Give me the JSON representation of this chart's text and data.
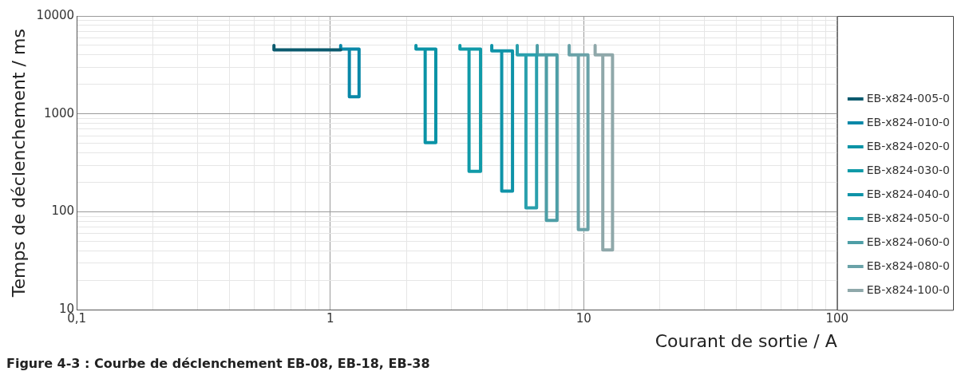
{
  "chart_data": {
    "type": "line",
    "title": "Figure 4-3 : Courbe de déclenchement EB-08, EB-18, EB-38",
    "xlabel": "Courant de sortie / A",
    "ylabel": "Temps de déclenchement / ms",
    "log": "xy",
    "grid": true,
    "legend": "right",
    "marker": "none",
    "line_style": "solid",
    "xlim": [
      0.1,
      100
    ],
    "ylim": [
      10,
      10000
    ],
    "xticks": [
      {
        "value": 0.1,
        "label": "0,1"
      },
      {
        "value": 0.2,
        "label": null
      },
      {
        "value": 0.3,
        "label": null
      },
      {
        "value": 0.4,
        "label": null
      },
      {
        "value": 0.5,
        "label": null
      },
      {
        "value": 0.6,
        "label": null
      },
      {
        "value": 0.7,
        "label": null
      },
      {
        "value": 0.8,
        "label": null
      },
      {
        "value": 0.9,
        "label": null
      },
      1,
      {
        "value": 2,
        "label": null
      },
      {
        "value": 3,
        "label": null
      },
      {
        "value": 4,
        "label": null
      },
      {
        "value": 5,
        "label": null
      },
      {
        "value": 6,
        "label": null
      },
      {
        "value": 7,
        "label": null
      },
      {
        "value": 8,
        "label": null
      },
      {
        "value": 9,
        "label": null
      },
      10,
      {
        "value": 20,
        "label": null
      },
      {
        "value": 30,
        "label": null
      },
      {
        "value": 40,
        "label": null
      },
      {
        "value": 50,
        "label": null
      },
      {
        "value": 60,
        "label": null
      },
      {
        "value": 70,
        "label": null
      },
      {
        "value": 80,
        "label": null
      },
      {
        "value": 90,
        "label": null
      },
      100
    ],
    "yticks": [
      10,
      {
        "value": 20,
        "label": null
      },
      {
        "value": 30,
        "label": null
      },
      {
        "value": 40,
        "label": null
      },
      {
        "value": 50,
        "label": null
      },
      {
        "value": 60,
        "label": null
      },
      {
        "value": 70,
        "label": null
      },
      {
        "value": 80,
        "label": null
      },
      {
        "value": 90,
        "label": null
      },
      100,
      {
        "value": 200,
        "label": null
      },
      {
        "value": 300,
        "label": null
      },
      {
        "value": 400,
        "label": null
      },
      {
        "value": 500,
        "label": null
      },
      {
        "value": 600,
        "label": null
      },
      {
        "value": 700,
        "label": null
      },
      {
        "value": 800,
        "label": null
      },
      {
        "value": 900,
        "label": null
      },
      1000,
      {
        "value": 2000,
        "label": null
      },
      {
        "value": 3000,
        "label": null
      },
      {
        "value": 4000,
        "label": null
      },
      {
        "value": 5000,
        "label": null
      },
      {
        "value": 6000,
        "label": null
      },
      {
        "value": 7000,
        "label": null
      },
      {
        "value": 8000,
        "label": null
      },
      {
        "value": 9000,
        "label": null
      },
      10000
    ],
    "series": [
      {
        "name": "EB-x824-005-0",
        "color": "#0b5a6e",
        "x": [
          0.6,
          0.6,
          1.1
        ],
        "values": [
          5000,
          4500,
          4500
        ]
      },
      {
        "name": "EB-x824-010-0",
        "color": "#0a88a8",
        "x": [
          1.1,
          1.1,
          1.3,
          1.3,
          1.19,
          1.19
        ],
        "values": [
          5000,
          4600,
          4600,
          1500,
          1500,
          4600
        ]
      },
      {
        "name": "EB-x824-020-0",
        "color": "#0a93a6",
        "x": [
          2.18,
          2.18,
          2.61,
          2.61,
          2.37,
          2.37
        ],
        "values": [
          5000,
          4600,
          4600,
          510,
          510,
          4600
        ]
      },
      {
        "name": "EB-x824-030-0",
        "color": "#109aa8",
        "x": [
          3.25,
          3.25,
          3.92,
          3.92,
          3.53,
          3.53
        ],
        "values": [
          5000,
          4600,
          4600,
          260,
          260,
          4600
        ]
      },
      {
        "name": "EB-x824-040-0",
        "color": "#0e93a8",
        "x": [
          4.34,
          4.34,
          5.24,
          5.24,
          4.75,
          4.75
        ],
        "values": [
          5000,
          4400,
          4400,
          163,
          163,
          4400
        ]
      },
      {
        "name": "EB-x824-050-0",
        "color": "#2aa0ad",
        "x": [
          5.47,
          5.47,
          6.52,
          6.52,
          5.92,
          5.92
        ],
        "values": [
          5000,
          4000,
          4000,
          110,
          110,
          4000
        ]
      },
      {
        "name": "EB-x824-060-0",
        "color": "#4d9ea6",
        "x": [
          6.56,
          6.56,
          7.85,
          7.85,
          7.13,
          7.13
        ],
        "values": [
          5000,
          4000,
          4000,
          82,
          82,
          4000
        ]
      },
      {
        "name": "EB-x824-080-0",
        "color": "#6aa2a8",
        "x": [
          8.77,
          8.77,
          10.4,
          10.4,
          9.53,
          9.53
        ],
        "values": [
          5000,
          4000,
          4000,
          66,
          66,
          4000
        ]
      },
      {
        "name": "EB-x824-100-0",
        "color": "#8fa8aa",
        "x": [
          11.1,
          11.1,
          13,
          13,
          11.9,
          11.9
        ],
        "values": [
          5000,
          4000,
          4000,
          41,
          41,
          4000
        ]
      }
    ]
  }
}
